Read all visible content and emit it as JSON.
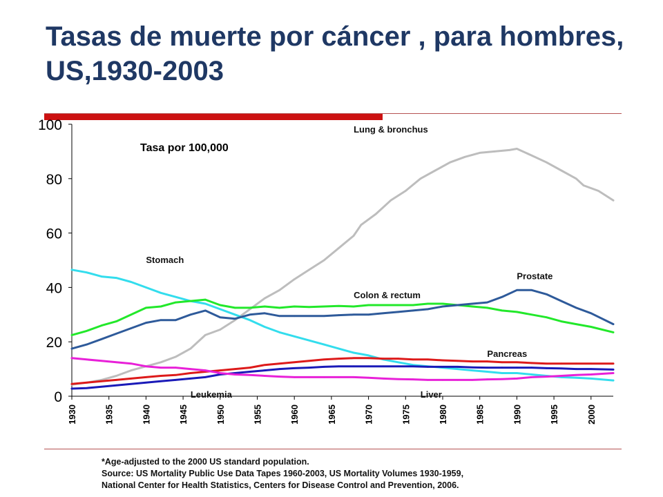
{
  "slide": {
    "title": "Tasas de muerte por cáncer , para hombres, US,1930-2003",
    "colors": {
      "title": "#1f3864",
      "accent_bar": "#cc1111",
      "rule": "#b55252"
    },
    "footnotes": [
      "*Age-adjusted to the 2000 US standard population.",
      "Source:  US Mortality Public Use Data Tapes 1960-2003, US Mortality Volumes 1930-1959,",
      "National Center for Health Statistics, Centers for Disease Control and Prevention, 2006."
    ]
  },
  "chart_data": {
    "type": "line",
    "title": "",
    "ylabel": "Tasa por 100,000",
    "xlabel": "",
    "ylim": [
      0,
      100
    ],
    "xlim": [
      1930,
      2003
    ],
    "yticks": [
      "0",
      "20",
      "40",
      "60",
      "80",
      "100"
    ],
    "xticks": [
      "1930",
      "1935",
      "1940",
      "1945",
      "1950",
      "1955",
      "1960",
      "1965",
      "1970",
      "1975",
      "1980",
      "1985",
      "1990",
      "1995",
      "2000"
    ],
    "grid": false,
    "legend": "inline labels",
    "series": [
      {
        "name": "Lung & bronchus",
        "color": "#bdbdbd",
        "points": [
          [
            1930,
            4.3
          ],
          [
            1932,
            5.0
          ],
          [
            1934,
            6.0
          ],
          [
            1936,
            7.5
          ],
          [
            1938,
            9.5
          ],
          [
            1940,
            11.0
          ],
          [
            1942,
            12.5
          ],
          [
            1944,
            14.5
          ],
          [
            1946,
            17.5
          ],
          [
            1948,
            22.5
          ],
          [
            1950,
            24.5
          ],
          [
            1952,
            28.0
          ],
          [
            1954,
            32.0
          ],
          [
            1956,
            36.0
          ],
          [
            1958,
            39.0
          ],
          [
            1960,
            43.0
          ],
          [
            1962,
            46.5
          ],
          [
            1964,
            50.0
          ],
          [
            1966,
            54.5
          ],
          [
            1968,
            59.0
          ],
          [
            1969,
            63.0
          ],
          [
            1971,
            67.0
          ],
          [
            1973,
            72.0
          ],
          [
            1975,
            75.5
          ],
          [
            1977,
            80.0
          ],
          [
            1979,
            83.0
          ],
          [
            1981,
            86.0
          ],
          [
            1983,
            88.0
          ],
          [
            1985,
            89.5
          ],
          [
            1987,
            90.0
          ],
          [
            1989,
            90.5
          ],
          [
            1990,
            91.0
          ],
          [
            1992,
            88.5
          ],
          [
            1994,
            86.0
          ],
          [
            1996,
            83.0
          ],
          [
            1998,
            80.0
          ],
          [
            1999,
            77.5
          ],
          [
            2001,
            75.5
          ],
          [
            2003,
            72.0
          ]
        ]
      },
      {
        "name": "Stomach",
        "color": "#33dded",
        "points": [
          [
            1930,
            46.5
          ],
          [
            1932,
            45.5
          ],
          [
            1934,
            44.0
          ],
          [
            1936,
            43.5
          ],
          [
            1938,
            42.0
          ],
          [
            1940,
            40.0
          ],
          [
            1942,
            38.0
          ],
          [
            1944,
            36.5
          ],
          [
            1946,
            35.0
          ],
          [
            1948,
            34.0
          ],
          [
            1950,
            32.0
          ],
          [
            1952,
            30.0
          ],
          [
            1954,
            28.0
          ],
          [
            1956,
            25.5
          ],
          [
            1958,
            23.5
          ],
          [
            1960,
            22.0
          ],
          [
            1962,
            20.5
          ],
          [
            1964,
            19.0
          ],
          [
            1966,
            17.5
          ],
          [
            1968,
            16.0
          ],
          [
            1970,
            15.0
          ],
          [
            1972,
            13.5
          ],
          [
            1974,
            12.5
          ],
          [
            1976,
            11.5
          ],
          [
            1978,
            11.0
          ],
          [
            1980,
            10.5
          ],
          [
            1982,
            10.0
          ],
          [
            1984,
            9.5
          ],
          [
            1986,
            9.0
          ],
          [
            1988,
            8.5
          ],
          [
            1990,
            8.5
          ],
          [
            1992,
            8.0
          ],
          [
            1994,
            7.5
          ],
          [
            1996,
            7.0
          ],
          [
            1998,
            6.8
          ],
          [
            2000,
            6.5
          ],
          [
            2003,
            5.8
          ]
        ]
      },
      {
        "name": "Colon & rectum",
        "color": "#22e82a",
        "points": [
          [
            1930,
            22.5
          ],
          [
            1932,
            24.0
          ],
          [
            1934,
            26.0
          ],
          [
            1936,
            27.5
          ],
          [
            1938,
            30.0
          ],
          [
            1940,
            32.5
          ],
          [
            1942,
            33.0
          ],
          [
            1944,
            34.5
          ],
          [
            1946,
            35.0
          ],
          [
            1948,
            35.5
          ],
          [
            1950,
            33.5
          ],
          [
            1952,
            32.5
          ],
          [
            1954,
            32.5
          ],
          [
            1956,
            33.0
          ],
          [
            1958,
            32.5
          ],
          [
            1960,
            33.0
          ],
          [
            1962,
            32.8
          ],
          [
            1964,
            33.0
          ],
          [
            1966,
            33.2
          ],
          [
            1968,
            33.0
          ],
          [
            1970,
            33.5
          ],
          [
            1972,
            33.5
          ],
          [
            1974,
            33.5
          ],
          [
            1976,
            33.5
          ],
          [
            1978,
            34.0
          ],
          [
            1980,
            34.0
          ],
          [
            1982,
            33.5
          ],
          [
            1984,
            33.0
          ],
          [
            1986,
            32.5
          ],
          [
            1988,
            31.5
          ],
          [
            1990,
            31.0
          ],
          [
            1992,
            30.0
          ],
          [
            1994,
            29.0
          ],
          [
            1996,
            27.5
          ],
          [
            1998,
            26.5
          ],
          [
            2000,
            25.5
          ],
          [
            2003,
            23.5
          ]
        ]
      },
      {
        "name": "Prostate",
        "color": "#2e5a9a",
        "points": [
          [
            1930,
            17.5
          ],
          [
            1932,
            19.0
          ],
          [
            1934,
            21.0
          ],
          [
            1936,
            23.0
          ],
          [
            1938,
            25.0
          ],
          [
            1940,
            27.0
          ],
          [
            1942,
            28.0
          ],
          [
            1944,
            28.0
          ],
          [
            1946,
            30.0
          ],
          [
            1948,
            31.5
          ],
          [
            1950,
            29.0
          ],
          [
            1952,
            28.5
          ],
          [
            1954,
            30.0
          ],
          [
            1956,
            30.5
          ],
          [
            1958,
            29.5
          ],
          [
            1960,
            29.5
          ],
          [
            1962,
            29.5
          ],
          [
            1964,
            29.5
          ],
          [
            1966,
            29.8
          ],
          [
            1968,
            30.0
          ],
          [
            1970,
            30.0
          ],
          [
            1972,
            30.5
          ],
          [
            1974,
            31.0
          ],
          [
            1976,
            31.5
          ],
          [
            1978,
            32.0
          ],
          [
            1980,
            33.0
          ],
          [
            1982,
            33.5
          ],
          [
            1984,
            34.0
          ],
          [
            1986,
            34.5
          ],
          [
            1988,
            36.5
          ],
          [
            1990,
            39.0
          ],
          [
            1992,
            39.0
          ],
          [
            1994,
            37.5
          ],
          [
            1996,
            35.0
          ],
          [
            1998,
            32.5
          ],
          [
            2000,
            30.5
          ],
          [
            2003,
            26.5
          ]
        ]
      },
      {
        "name": "Pancreas",
        "color": "#dd1a1a",
        "points": [
          [
            1930,
            4.5
          ],
          [
            1932,
            5.0
          ],
          [
            1934,
            5.5
          ],
          [
            1936,
            6.0
          ],
          [
            1938,
            6.5
          ],
          [
            1940,
            7.0
          ],
          [
            1942,
            7.5
          ],
          [
            1944,
            7.8
          ],
          [
            1946,
            8.5
          ],
          [
            1948,
            9.0
          ],
          [
            1950,
            9.5
          ],
          [
            1952,
            10.0
          ],
          [
            1954,
            10.5
          ],
          [
            1956,
            11.5
          ],
          [
            1958,
            12.0
          ],
          [
            1960,
            12.5
          ],
          [
            1962,
            13.0
          ],
          [
            1964,
            13.5
          ],
          [
            1966,
            13.8
          ],
          [
            1968,
            14.0
          ],
          [
            1970,
            14.0
          ],
          [
            1972,
            13.8
          ],
          [
            1974,
            13.8
          ],
          [
            1976,
            13.5
          ],
          [
            1978,
            13.5
          ],
          [
            1980,
            13.2
          ],
          [
            1982,
            13.0
          ],
          [
            1984,
            12.8
          ],
          [
            1986,
            12.8
          ],
          [
            1988,
            12.5
          ],
          [
            1990,
            12.5
          ],
          [
            1992,
            12.2
          ],
          [
            1994,
            12.0
          ],
          [
            1996,
            12.0
          ],
          [
            1998,
            12.0
          ],
          [
            2000,
            12.0
          ],
          [
            2003,
            12.0
          ]
        ]
      },
      {
        "name": "Leukemia",
        "color": "#1a1ab8",
        "points": [
          [
            1930,
            2.8
          ],
          [
            1932,
            3.0
          ],
          [
            1934,
            3.5
          ],
          [
            1936,
            4.0
          ],
          [
            1938,
            4.5
          ],
          [
            1940,
            5.0
          ],
          [
            1942,
            5.5
          ],
          [
            1944,
            6.0
          ],
          [
            1946,
            6.5
          ],
          [
            1948,
            7.0
          ],
          [
            1950,
            8.0
          ],
          [
            1952,
            8.5
          ],
          [
            1954,
            9.0
          ],
          [
            1956,
            9.5
          ],
          [
            1958,
            10.0
          ],
          [
            1960,
            10.3
          ],
          [
            1962,
            10.5
          ],
          [
            1964,
            10.8
          ],
          [
            1966,
            11.0
          ],
          [
            1968,
            11.0
          ],
          [
            1970,
            11.0
          ],
          [
            1972,
            11.0
          ],
          [
            1974,
            11.0
          ],
          [
            1976,
            11.0
          ],
          [
            1978,
            10.8
          ],
          [
            1980,
            10.8
          ],
          [
            1982,
            10.8
          ],
          [
            1984,
            10.6
          ],
          [
            1986,
            10.5
          ],
          [
            1988,
            10.5
          ],
          [
            1990,
            10.5
          ],
          [
            1992,
            10.5
          ],
          [
            1994,
            10.3
          ],
          [
            1996,
            10.2
          ],
          [
            1998,
            10.0
          ],
          [
            2000,
            10.0
          ],
          [
            2003,
            9.8
          ]
        ]
      },
      {
        "name": "Liver",
        "color": "#e820d8",
        "points": [
          [
            1930,
            14.0
          ],
          [
            1932,
            13.5
          ],
          [
            1934,
            13.0
          ],
          [
            1936,
            12.5
          ],
          [
            1938,
            12.0
          ],
          [
            1940,
            11.0
          ],
          [
            1942,
            10.5
          ],
          [
            1944,
            10.5
          ],
          [
            1946,
            10.0
          ],
          [
            1948,
            9.5
          ],
          [
            1950,
            8.5
          ],
          [
            1952,
            8.0
          ],
          [
            1954,
            7.8
          ],
          [
            1956,
            7.5
          ],
          [
            1958,
            7.2
          ],
          [
            1960,
            7.0
          ],
          [
            1962,
            7.0
          ],
          [
            1964,
            7.0
          ],
          [
            1966,
            7.0
          ],
          [
            1968,
            7.0
          ],
          [
            1970,
            6.8
          ],
          [
            1972,
            6.5
          ],
          [
            1974,
            6.3
          ],
          [
            1976,
            6.2
          ],
          [
            1978,
            6.0
          ],
          [
            1980,
            6.0
          ],
          [
            1982,
            6.0
          ],
          [
            1984,
            6.0
          ],
          [
            1986,
            6.2
          ],
          [
            1988,
            6.3
          ],
          [
            1990,
            6.5
          ],
          [
            1992,
            7.0
          ],
          [
            1994,
            7.2
          ],
          [
            1996,
            7.5
          ],
          [
            1998,
            7.8
          ],
          [
            2000,
            8.0
          ],
          [
            2003,
            8.5
          ]
        ]
      }
    ],
    "series_labels": [
      {
        "text": "Lung & bronchus",
        "at": [
          1968,
          97
        ]
      },
      {
        "text": "Stomach",
        "at": [
          1940,
          49
        ]
      },
      {
        "text": "Prostate",
        "at": [
          1990,
          43
        ]
      },
      {
        "text": "Colon & rectum",
        "at": [
          1968,
          36
        ]
      },
      {
        "text": "Pancreas",
        "at": [
          1986,
          14.5
        ]
      },
      {
        "text": "Leukemia",
        "at": [
          1946,
          -0.5
        ]
      },
      {
        "text": "Liver",
        "at": [
          1977,
          -0.5
        ]
      }
    ]
  }
}
